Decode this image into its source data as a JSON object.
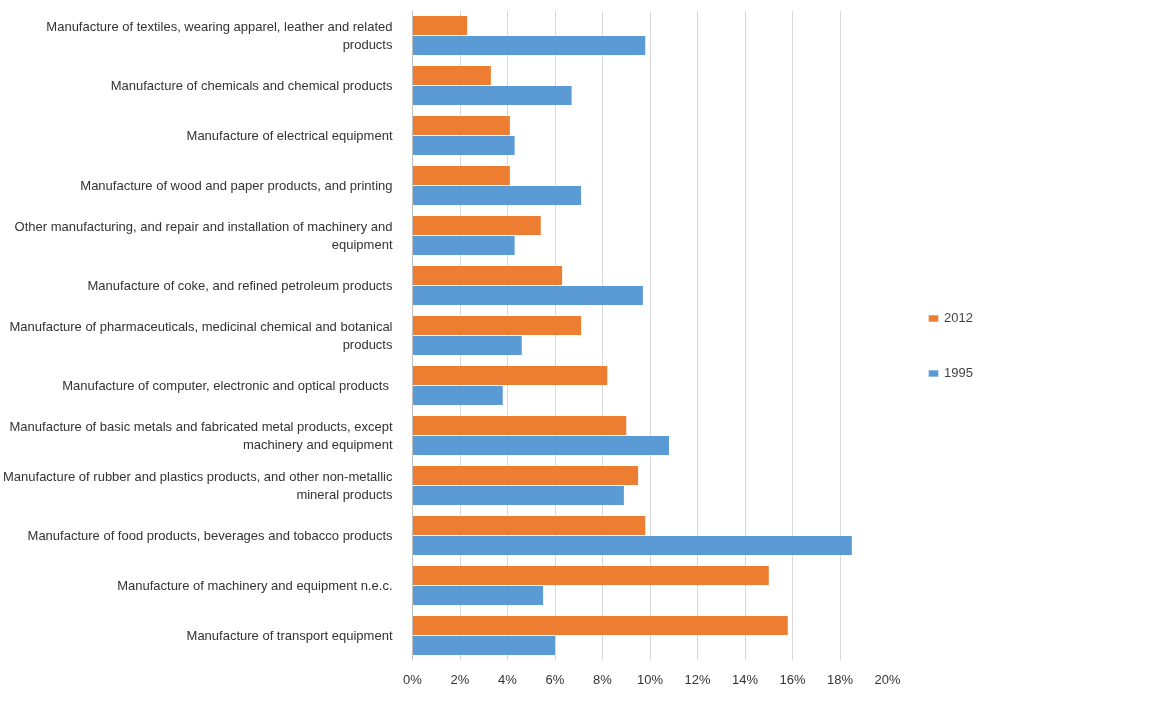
{
  "chart_data": {
    "type": "bar",
    "orientation": "horizontal",
    "categories": [
      "Manufacture of textiles, wearing apparel, leather and related products",
      "Manufacture of chemicals and chemical products",
      "Manufacture of electrical equipment",
      "Manufacture of wood and paper products, and printing",
      "Other manufacturing, and repair and installation of machinery and equipment",
      "Manufacture of coke, and refined petroleum products",
      "Manufacture of pharmaceuticals, medicinal chemical and botanical products",
      "Manufacture of computer, electronic  and optical products",
      "Manufacture of basic metals and fabricated metal products, except machinery and equipment",
      "Manufacture of rubber and plastics products, and other non-metallic mineral products",
      "Manufacture of food products, beverages and tobacco products",
      "Manufacture of machinery and equipment n.e.c.",
      "Manufacture of transport equipment"
    ],
    "series": [
      {
        "name": "2012",
        "color": "#ed7d31",
        "values": [
          2.3,
          3.3,
          4.1,
          4.1,
          5.4,
          6.3,
          7.1,
          8.2,
          9.0,
          9.5,
          9.8,
          15.0,
          15.8
        ]
      },
      {
        "name": "1995",
        "color": "#5b9bd5",
        "values": [
          9.8,
          6.7,
          4.3,
          7.1,
          4.3,
          9.7,
          4.6,
          3.8,
          10.8,
          8.9,
          18.5,
          5.5,
          6.0
        ]
      }
    ],
    "xlim": [
      0,
      20
    ],
    "xticks": [
      {
        "value": 0,
        "label": "0%"
      },
      {
        "value": 2,
        "label": "2%"
      },
      {
        "value": 4,
        "label": "4%"
      },
      {
        "value": 6,
        "label": "6%"
      },
      {
        "value": 8,
        "label": "8%"
      },
      {
        "value": 10,
        "label": "10%"
      },
      {
        "value": 12,
        "label": "12%"
      },
      {
        "value": 14,
        "label": "14%"
      },
      {
        "value": 16,
        "label": "16%"
      },
      {
        "value": 18,
        "label": "18%"
      },
      {
        "value": 20,
        "label": "20%"
      }
    ],
    "grid": "x",
    "legend": "right"
  }
}
